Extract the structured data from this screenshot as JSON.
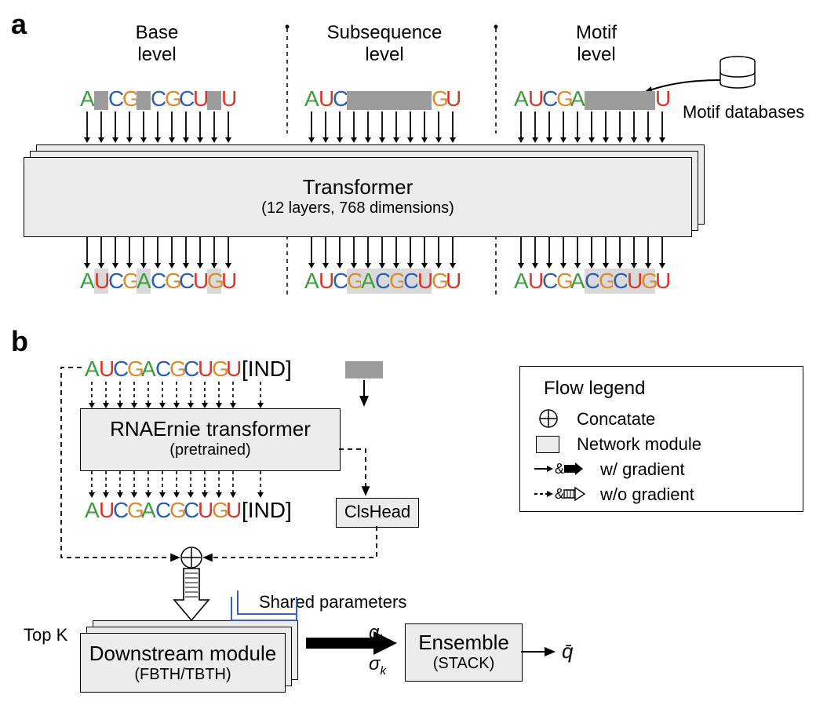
{
  "colors": {
    "A": "#3f9b3f",
    "U": "#d9362a",
    "C": "#2f5db0",
    "G": "#e08a2e",
    "mask": "#9c9c9c",
    "pred_bg": "#d9d9d9",
    "module_fill": "#ececec",
    "module_border": "#000000",
    "text": "#000000",
    "bg": "#ffffff"
  },
  "panelA": {
    "label": "a",
    "col1_title_l1": "Base",
    "col1_title_l2": "level",
    "col2_title_l1": "Subsequence",
    "col2_title_l2": "level",
    "col3_title_l1": "Motif",
    "col3_title_l2": "level",
    "motif_db": "Motif databases",
    "transformer_title": "Transformer",
    "transformer_sub": "(12 layers, 768 dimensions)",
    "sequence": [
      "A",
      "U",
      "C",
      "G",
      "A",
      "C",
      "G",
      "C",
      "U",
      "G",
      "U"
    ],
    "col1_mask_idx": [
      1,
      4,
      9
    ],
    "col2_mask_range": [
      3,
      8
    ],
    "col3_mask_range": [
      5,
      9
    ],
    "col1_pred_idx": [
      1,
      4,
      9
    ],
    "col2_pred_idx": [
      3,
      4,
      5,
      6,
      7,
      8
    ],
    "col3_pred_idx": [
      5,
      6,
      7,
      8,
      9
    ]
  },
  "panelB": {
    "label": "b",
    "ind_token": "[IND]",
    "rnaernie_title": "RNAErnie transformer",
    "rnaernie_sub": "(pretrained)",
    "clshead": "ClsHead",
    "topk": "Top K",
    "downstream_title": "Downstream module",
    "downstream_sub": "(FBTH/TBTH)",
    "shared": "Shared parameters",
    "qk": "q",
    "qk_sub": "k",
    "sigma": "σ",
    "sigma_sub": "k",
    "ensemble_title": "Ensemble",
    "ensemble_sub": "(STACK)",
    "qbar": "q̄"
  },
  "legend": {
    "title": "Flow legend",
    "concat": "Concatate",
    "module": "Network module",
    "wgrad": "w/ gradient",
    "wograd": "w/o gradient"
  }
}
